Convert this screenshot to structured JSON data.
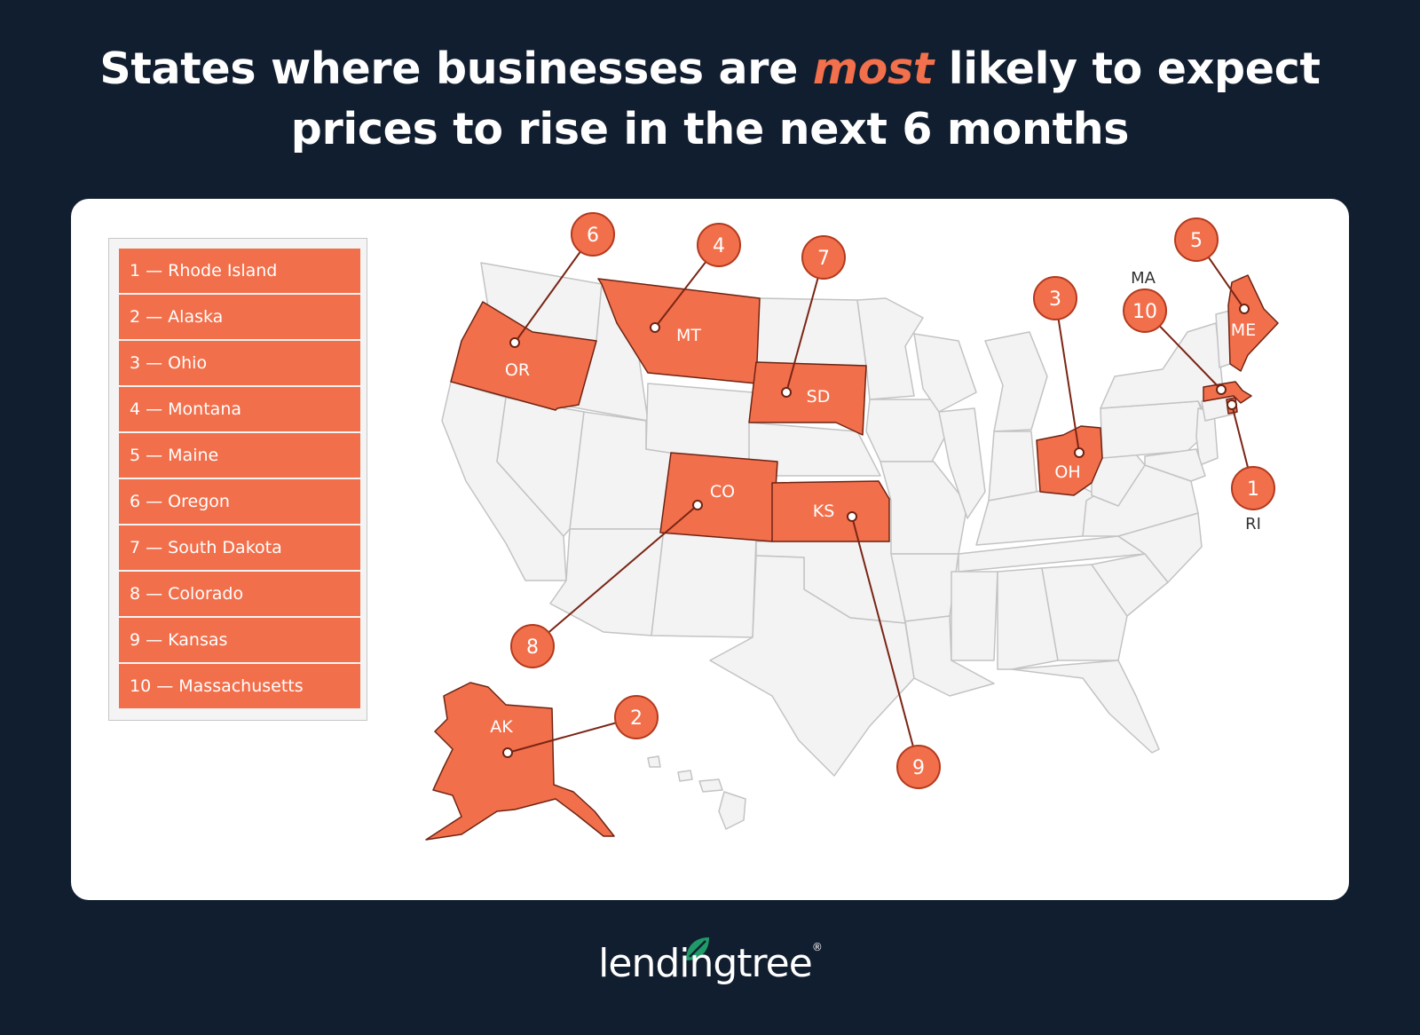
{
  "title": {
    "before": "States where businesses are ",
    "highlight": "most",
    "after_line1": " likely to expect",
    "line2": "prices to rise in the next 6 months"
  },
  "legend": [
    {
      "rank": 1,
      "text": "1 — Rhode Island"
    },
    {
      "rank": 2,
      "text": "2 — Alaska"
    },
    {
      "rank": 3,
      "text": "3 — Ohio"
    },
    {
      "rank": 4,
      "text": "4 — Montana"
    },
    {
      "rank": 5,
      "text": "5 — Maine"
    },
    {
      "rank": 6,
      "text": "6 — Oregon"
    },
    {
      "rank": 7,
      "text": "7 — South Dakota"
    },
    {
      "rank": 8,
      "text": "8 — Colorado"
    },
    {
      "rank": 9,
      "text": "9 — Kansas"
    },
    {
      "rank": 10,
      "text": "10 — Massachusetts"
    }
  ],
  "map": {
    "highlighted_states": [
      {
        "abbr": "OR",
        "rank": "6"
      },
      {
        "abbr": "MT",
        "rank": "4"
      },
      {
        "abbr": "SD",
        "rank": "7"
      },
      {
        "abbr": "CO",
        "rank": "8"
      },
      {
        "abbr": "KS",
        "rank": "9"
      },
      {
        "abbr": "OH",
        "rank": "3"
      },
      {
        "abbr": "ME",
        "rank": "5"
      },
      {
        "abbr": "MA",
        "rank": "10"
      },
      {
        "abbr": "RI",
        "rank": "1"
      },
      {
        "abbr": "AK",
        "rank": "2"
      }
    ]
  },
  "colors": {
    "background": "#111e2f",
    "highlight": "#f26f4b",
    "state_fill": "#f3f3f3"
  },
  "brand": {
    "name": "lendingtree",
    "tm": "®"
  }
}
